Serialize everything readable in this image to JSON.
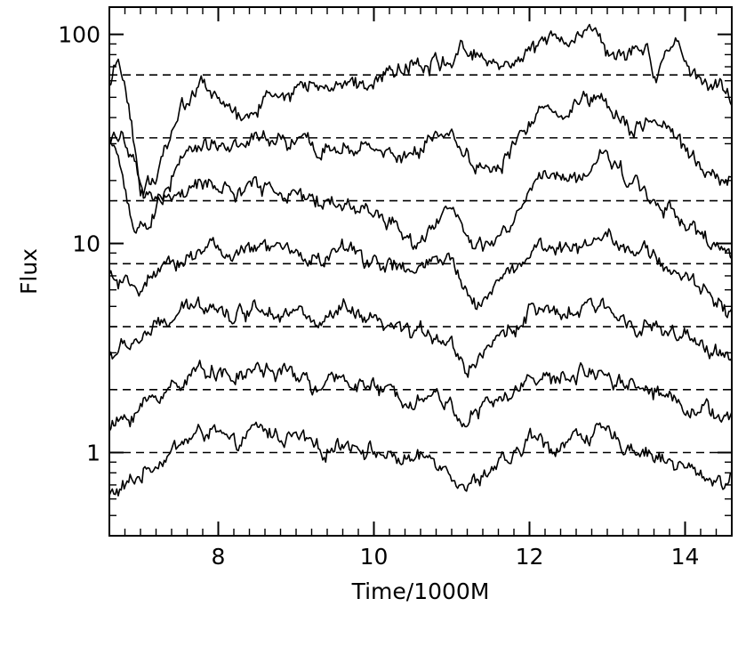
{
  "chart_data": {
    "type": "line",
    "title": "",
    "xlabel": "Time/1000M",
    "ylabel": "Flux",
    "xlim": [
      6.6,
      14.6
    ],
    "ylim": [
      0.4,
      135
    ],
    "yscale": "log",
    "grid": false,
    "legend": "none",
    "x_ticks": [
      8,
      10,
      12,
      14
    ],
    "x_tick_labels": [
      "8",
      "10",
      "12",
      "14"
    ],
    "y_ticks": [
      1,
      10,
      100
    ],
    "y_tick_labels": [
      "1",
      "10",
      "100"
    ],
    "reference_lines": [
      1,
      2,
      4,
      8,
      16,
      32,
      64
    ],
    "colors": {
      "line": "#000000",
      "reference": "#000000"
    },
    "series": [
      {
        "ref": 1,
        "points": [
          [
            6.6,
            0.62
          ],
          [
            6.8,
            0.68
          ],
          [
            7.2,
            0.9
          ],
          [
            7.6,
            1.15
          ],
          [
            7.9,
            1.3
          ],
          [
            8.2,
            1.05
          ],
          [
            8.5,
            1.3
          ],
          [
            8.8,
            1.2
          ],
          [
            9.1,
            1.15
          ],
          [
            9.3,
            0.98
          ],
          [
            9.6,
            1.15
          ],
          [
            9.9,
            1.05
          ],
          [
            10.2,
            0.95
          ],
          [
            10.5,
            0.92
          ],
          [
            10.8,
            0.95
          ],
          [
            11.0,
            0.82
          ],
          [
            11.2,
            0.68
          ],
          [
            11.5,
            0.85
          ],
          [
            11.8,
            0.9
          ],
          [
            12.0,
            1.2
          ],
          [
            12.3,
            1.05
          ],
          [
            12.6,
            1.2
          ],
          [
            12.9,
            1.25
          ],
          [
            13.2,
            1.1
          ],
          [
            13.5,
            1.02
          ],
          [
            13.8,
            0.9
          ],
          [
            14.2,
            0.78
          ],
          [
            14.6,
            0.72
          ]
        ]
      },
      {
        "ref": 2,
        "points": [
          [
            6.6,
            1.3
          ],
          [
            6.8,
            1.45
          ],
          [
            7.2,
            1.85
          ],
          [
            7.6,
            2.3
          ],
          [
            7.9,
            2.6
          ],
          [
            8.2,
            2.2
          ],
          [
            8.5,
            2.55
          ],
          [
            8.8,
            2.4
          ],
          [
            9.1,
            2.3
          ],
          [
            9.3,
            1.95
          ],
          [
            9.6,
            2.3
          ],
          [
            9.9,
            2.1
          ],
          [
            10.2,
            1.9
          ],
          [
            10.5,
            1.85
          ],
          [
            10.8,
            1.9
          ],
          [
            11.0,
            1.65
          ],
          [
            11.2,
            1.4
          ],
          [
            11.5,
            1.75
          ],
          [
            11.8,
            1.85
          ],
          [
            12.0,
            2.45
          ],
          [
            12.3,
            2.15
          ],
          [
            12.6,
            2.4
          ],
          [
            12.9,
            2.5
          ],
          [
            13.2,
            2.2
          ],
          [
            13.5,
            2.05
          ],
          [
            13.8,
            1.85
          ],
          [
            14.2,
            1.6
          ],
          [
            14.6,
            1.45
          ]
        ]
      },
      {
        "ref": 4,
        "points": [
          [
            6.6,
            2.9
          ],
          [
            6.8,
            3.2
          ],
          [
            7.2,
            3.9
          ],
          [
            7.6,
            4.8
          ],
          [
            7.9,
            5.4
          ],
          [
            8.2,
            4.4
          ],
          [
            8.5,
            5.1
          ],
          [
            8.8,
            4.8
          ],
          [
            9.1,
            4.6
          ],
          [
            9.3,
            3.95
          ],
          [
            9.6,
            4.8
          ],
          [
            9.9,
            4.2
          ],
          [
            10.2,
            3.9
          ],
          [
            10.5,
            3.7
          ],
          [
            10.8,
            3.8
          ],
          [
            11.0,
            3.3
          ],
          [
            11.2,
            2.5
          ],
          [
            11.5,
            3.4
          ],
          [
            11.8,
            3.8
          ],
          [
            12.0,
            5.0
          ],
          [
            12.3,
            4.4
          ],
          [
            12.6,
            4.7
          ],
          [
            12.9,
            5.0
          ],
          [
            13.2,
            4.4
          ],
          [
            13.5,
            4.1
          ],
          [
            13.8,
            3.7
          ],
          [
            14.2,
            3.2
          ],
          [
            14.6,
            2.9
          ]
        ]
      },
      {
        "ref": 8,
        "points": [
          [
            6.6,
            7.0
          ],
          [
            6.8,
            6.0
          ],
          [
            7.2,
            6.8
          ],
          [
            7.6,
            8.7
          ],
          [
            7.9,
            10.0
          ],
          [
            8.2,
            8.4
          ],
          [
            8.5,
            9.5
          ],
          [
            8.8,
            9.4
          ],
          [
            9.1,
            8.7
          ],
          [
            9.3,
            8.2
          ],
          [
            9.6,
            9.5
          ],
          [
            9.9,
            8.5
          ],
          [
            10.2,
            7.8
          ],
          [
            10.5,
            7.2
          ],
          [
            10.8,
            8.3
          ],
          [
            11.0,
            8.0
          ],
          [
            11.3,
            5.0
          ],
          [
            11.6,
            6.8
          ],
          [
            11.9,
            8.0
          ],
          [
            12.1,
            10.0
          ],
          [
            12.4,
            9.0
          ],
          [
            12.7,
            10.0
          ],
          [
            13.0,
            11.5
          ],
          [
            13.3,
            9.5
          ],
          [
            13.6,
            8.5
          ],
          [
            13.9,
            7.2
          ],
          [
            14.3,
            5.8
          ],
          [
            14.6,
            4.8
          ]
        ]
      },
      {
        "ref": 16,
        "points": [
          [
            6.6,
            33.0
          ],
          [
            6.75,
            24.0
          ],
          [
            6.9,
            11.0
          ],
          [
            7.1,
            12.0
          ],
          [
            7.3,
            17.0
          ],
          [
            7.6,
            17.0
          ],
          [
            7.9,
            20.0
          ],
          [
            8.2,
            17.0
          ],
          [
            8.5,
            19.0
          ],
          [
            8.8,
            18.0
          ],
          [
            9.1,
            16.0
          ],
          [
            9.3,
            16.0
          ],
          [
            9.6,
            15.5
          ],
          [
            9.9,
            14.5
          ],
          [
            10.2,
            13.0
          ],
          [
            10.5,
            10.0
          ],
          [
            10.8,
            13.0
          ],
          [
            11.0,
            15.0
          ],
          [
            11.3,
            9.0
          ],
          [
            11.6,
            10.5
          ],
          [
            11.9,
            14.0
          ],
          [
            12.1,
            21.0
          ],
          [
            12.4,
            20.0
          ],
          [
            12.7,
            21.0
          ],
          [
            13.0,
            27.0
          ],
          [
            13.3,
            20.0
          ],
          [
            13.6,
            16.0
          ],
          [
            13.9,
            14.0
          ],
          [
            14.3,
            10.0
          ],
          [
            14.6,
            8.5
          ]
        ]
      },
      {
        "ref": 32,
        "points": [
          [
            6.6,
            30.0
          ],
          [
            6.75,
            36.0
          ],
          [
            6.9,
            24.0
          ],
          [
            7.05,
            16.0
          ],
          [
            7.3,
            17.0
          ],
          [
            7.6,
            28.0
          ],
          [
            7.9,
            30.0
          ],
          [
            8.2,
            30.0
          ],
          [
            8.5,
            31.0
          ],
          [
            8.8,
            30.0
          ],
          [
            9.1,
            30.0
          ],
          [
            9.3,
            27.0
          ],
          [
            9.6,
            30.0
          ],
          [
            9.9,
            27.0
          ],
          [
            10.2,
            27.0
          ],
          [
            10.5,
            26.0
          ],
          [
            10.8,
            34.0
          ],
          [
            11.0,
            34.0
          ],
          [
            11.3,
            24.0
          ],
          [
            11.6,
            22.0
          ],
          [
            11.9,
            33.0
          ],
          [
            12.1,
            45.0
          ],
          [
            12.4,
            42.0
          ],
          [
            12.7,
            50.0
          ],
          [
            13.0,
            50.0
          ],
          [
            13.3,
            36.0
          ],
          [
            13.6,
            38.0
          ],
          [
            13.9,
            30.0
          ],
          [
            14.3,
            22.0
          ],
          [
            14.6,
            20.0
          ]
        ]
      },
      {
        "ref": 64,
        "points": [
          [
            6.6,
            52.0
          ],
          [
            6.7,
            75.0
          ],
          [
            6.8,
            62.0
          ],
          [
            6.9,
            34.0
          ],
          [
            7.0,
            18.0
          ],
          [
            7.2,
            20.0
          ],
          [
            7.5,
            45.0
          ],
          [
            7.8,
            58.0
          ],
          [
            8.1,
            45.0
          ],
          [
            8.3,
            38.0
          ],
          [
            8.6,
            50.0
          ],
          [
            8.9,
            52.0
          ],
          [
            9.2,
            58.0
          ],
          [
            9.5,
            55.0
          ],
          [
            9.8,
            60.0
          ],
          [
            10.1,
            65.0
          ],
          [
            10.4,
            70.0
          ],
          [
            10.7,
            75.0
          ],
          [
            11.0,
            70.0
          ],
          [
            11.1,
            92.0
          ],
          [
            11.4,
            80.0
          ],
          [
            11.7,
            73.0
          ],
          [
            12.0,
            88.0
          ],
          [
            12.3,
            92.0
          ],
          [
            12.6,
            98.0
          ],
          [
            12.8,
            105.0
          ],
          [
            13.0,
            85.0
          ],
          [
            13.2,
            80.0
          ],
          [
            13.5,
            88.0
          ],
          [
            13.6,
            62.0
          ],
          [
            13.9,
            88.0
          ],
          [
            14.1,
            62.0
          ],
          [
            14.4,
            55.0
          ],
          [
            14.6,
            48.0
          ]
        ]
      }
    ]
  }
}
